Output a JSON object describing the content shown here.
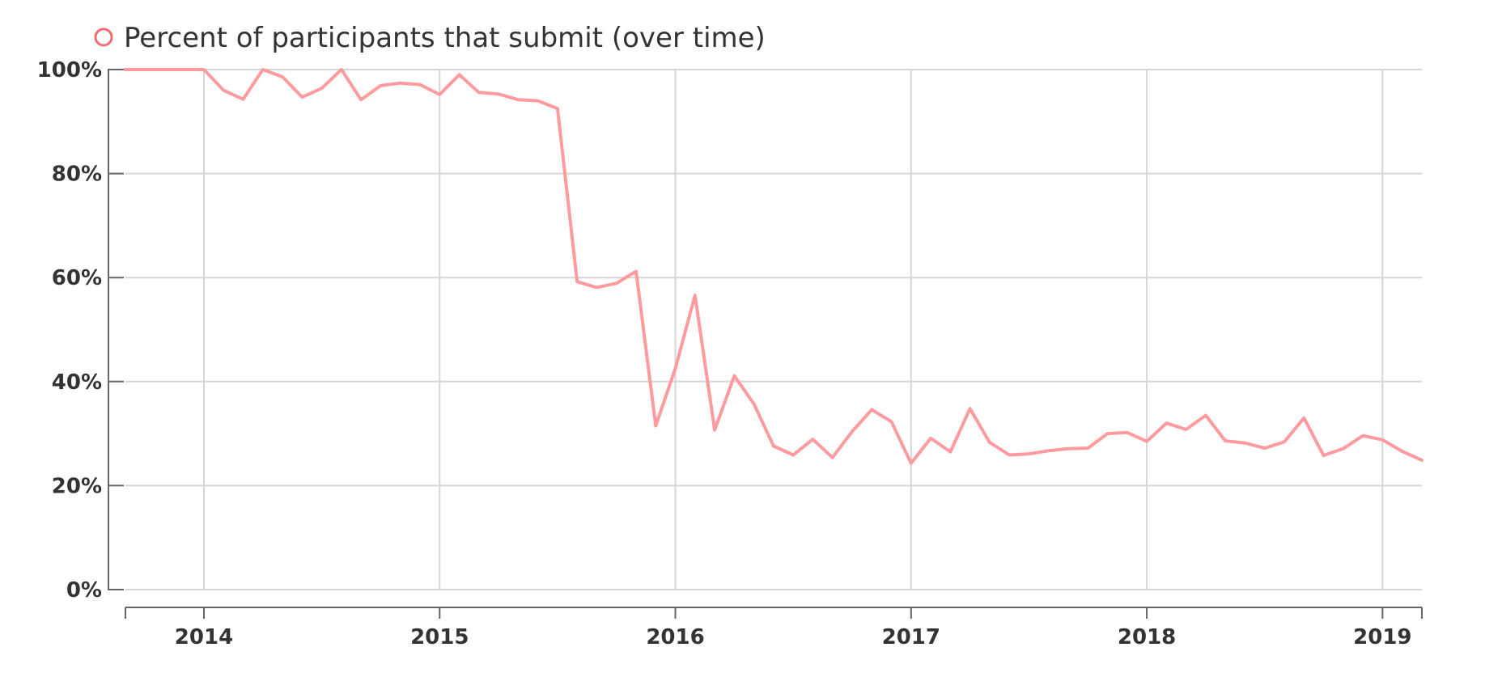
{
  "legend": {
    "label": "Percent of participants that submit (over time)",
    "icon": "circle-outline-icon"
  },
  "colors": {
    "series": "#ff9a9e",
    "legend_marker": "#f26d70",
    "grid": "#d6d6d6",
    "axis": "#666666",
    "text": "#333333"
  },
  "chart_data": {
    "type": "line",
    "title": "",
    "xlabel": "",
    "ylabel": "",
    "x_range": [
      2013.667,
      2019.167
    ],
    "ylim": [
      0,
      100
    ],
    "grid": true,
    "legend_position": "top-left",
    "x_ticks": [
      {
        "value": 2014,
        "label": "2014"
      },
      {
        "value": 2015,
        "label": "2015"
      },
      {
        "value": 2016,
        "label": "2016"
      },
      {
        "value": 2017,
        "label": "2017"
      },
      {
        "value": 2018,
        "label": "2018"
      },
      {
        "value": 2019,
        "label": "2019"
      }
    ],
    "y_ticks": [
      {
        "value": 0,
        "label": "0%"
      },
      {
        "value": 20,
        "label": "20%"
      },
      {
        "value": 40,
        "label": "40%"
      },
      {
        "value": 60,
        "label": "60%"
      },
      {
        "value": 80,
        "label": "80%"
      },
      {
        "value": 100,
        "label": "100%"
      }
    ],
    "series": [
      {
        "name": "Percent of participants that submit (over time)",
        "points": [
          [
            "2013-09",
            100
          ],
          [
            "2013-10",
            100
          ],
          [
            "2013-11",
            100
          ],
          [
            "2013-12",
            100
          ],
          [
            "2014-01",
            100
          ],
          [
            "2014-02",
            96
          ],
          [
            "2014-03",
            94.3
          ],
          [
            "2014-04",
            100
          ],
          [
            "2014-05",
            98.6
          ],
          [
            "2014-06",
            94.7
          ],
          [
            "2014-07",
            96.4
          ],
          [
            "2014-08",
            100
          ],
          [
            "2014-09",
            94.2
          ],
          [
            "2014-10",
            96.9
          ],
          [
            "2014-11",
            97.4
          ],
          [
            "2014-12",
            97.1
          ],
          [
            "2015-01",
            95.2
          ],
          [
            "2015-02",
            99
          ],
          [
            "2015-03",
            95.6
          ],
          [
            "2015-04",
            95.3
          ],
          [
            "2015-05",
            94.2
          ],
          [
            "2015-06",
            94
          ],
          [
            "2015-07",
            92.5
          ],
          [
            "2015-08",
            59.2
          ],
          [
            "2015-09",
            58.1
          ],
          [
            "2015-10",
            58.9
          ],
          [
            "2015-11",
            61.2
          ],
          [
            "2015-12",
            31.5
          ],
          [
            "2016-01",
            42.5
          ],
          [
            "2016-02",
            56.6
          ],
          [
            "2016-03",
            30.7
          ],
          [
            "2016-04",
            41.1
          ],
          [
            "2016-05",
            35.7
          ],
          [
            "2016-06",
            27.6
          ],
          [
            "2016-07",
            25.9
          ],
          [
            "2016-08",
            28.9
          ],
          [
            "2016-09",
            25.4
          ],
          [
            "2016-10",
            30.4
          ],
          [
            "2016-11",
            34.6
          ],
          [
            "2016-12",
            32.3
          ],
          [
            "2017-01",
            24.3
          ],
          [
            "2017-02",
            29.1
          ],
          [
            "2017-03",
            26.5
          ],
          [
            "2017-04",
            34.8
          ],
          [
            "2017-05",
            28.3
          ],
          [
            "2017-06",
            25.9
          ],
          [
            "2017-07",
            26.1
          ],
          [
            "2017-08",
            26.7
          ],
          [
            "2017-09",
            27.1
          ],
          [
            "2017-10",
            27.2
          ],
          [
            "2017-11",
            30
          ],
          [
            "2017-12",
            30.2
          ],
          [
            "2018-01",
            28.5
          ],
          [
            "2018-02",
            32
          ],
          [
            "2018-03",
            30.8
          ],
          [
            "2018-04",
            33.5
          ],
          [
            "2018-05",
            28.6
          ],
          [
            "2018-06",
            28.2
          ],
          [
            "2018-07",
            27.2
          ],
          [
            "2018-08",
            28.4
          ],
          [
            "2018-09",
            33
          ],
          [
            "2018-10",
            25.8
          ],
          [
            "2018-11",
            27.1
          ],
          [
            "2018-12",
            29.6
          ],
          [
            "2019-01",
            28.8
          ],
          [
            "2019-02",
            26.6
          ],
          [
            "2019-03",
            24.9
          ]
        ]
      }
    ]
  }
}
